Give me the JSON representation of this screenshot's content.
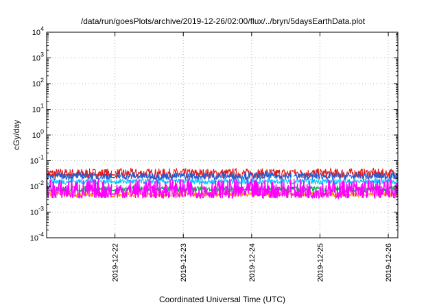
{
  "chart_data": {
    "type": "line",
    "title": "/data/run/goesPlots/archive/2019-12-26/02:00/flux/../bryn/5daysEarthData.plot",
    "xlabel": "Coordinated Universal Time (UTC)",
    "ylabel": "cGy/day",
    "yscale": "log",
    "ylim": [
      0.0001,
      10000
    ],
    "xlim": [
      0,
      5.14
    ],
    "y_ticks": [
      {
        "value": 10000,
        "base": "10",
        "exp": "4"
      },
      {
        "value": 1000,
        "base": "10",
        "exp": "3"
      },
      {
        "value": 100,
        "base": "10",
        "exp": "2"
      },
      {
        "value": 10,
        "base": "10",
        "exp": "1"
      },
      {
        "value": 1,
        "base": "10",
        "exp": "0"
      },
      {
        "value": 0.1,
        "base": "10",
        "exp": "-1"
      },
      {
        "value": 0.01,
        "base": "10",
        "exp": "-2"
      },
      {
        "value": 0.001,
        "base": "10",
        "exp": "-3"
      },
      {
        "value": 0.0001,
        "base": "10",
        "exp": "-4"
      }
    ],
    "x_ticks": [
      {
        "value": 1,
        "label": "2019-12-22"
      },
      {
        "value": 2,
        "label": "2019-12-23"
      },
      {
        "value": 3,
        "label": "2019-12-24"
      },
      {
        "value": 4,
        "label": "2019-12-25"
      },
      {
        "value": 5,
        "label": "2019-12-26"
      }
    ],
    "grid": true,
    "gaps": [
      [
        0.95,
        1.0
      ],
      [
        3.58,
        3.62
      ]
    ],
    "series": [
      {
        "color": "#e4191c",
        "segments": [
          {
            "x": [
              0,
              0.95
            ],
            "y": [
              0.028,
              0.028
            ]
          },
          {
            "x": [
              0.95,
              1.0
            ],
            "y": [
              0.028,
              0.028
            ]
          },
          {
            "x": [
              3.58,
              3.62
            ],
            "y": [
              0.04,
              0.04
            ]
          }
        ],
        "band": [
          0.02,
          0.05
        ]
      },
      {
        "color": "#ff8c00",
        "segments": [
          {
            "x": [
              0.95,
              1.0
            ],
            "y": [
              0.004,
              0.004
            ]
          },
          {
            "x": [
              3.58,
              3.62
            ],
            "y": [
              0.0045,
              0.0045
            ]
          }
        ],
        "band": [
          0.004,
          0.006
        ]
      },
      {
        "color": "#00b050",
        "segments": [
          {
            "x": [
              0.95,
              1.0
            ],
            "y": [
              0.007,
              0.007
            ]
          },
          {
            "x": [
              3.58,
              3.62
            ],
            "y": [
              0.008,
              0.008
            ]
          }
        ],
        "band": [
          0.006,
          0.01
        ]
      },
      {
        "color": "#00c8ff",
        "segments": [
          {
            "x": [
              0.95,
              1.0
            ],
            "y": [
              0.015,
              0.015
            ]
          },
          {
            "x": [
              3.58,
              3.62
            ],
            "y": [
              0.013,
              0.013
            ]
          }
        ],
        "band": [
          0.012,
          0.02
        ]
      },
      {
        "color": "#1f5fd6",
        "segments": [
          {
            "x": [
              0.95,
              1.0
            ],
            "y": [
              0.022,
              0.022
            ]
          },
          {
            "x": [
              3.58,
              3.62
            ],
            "y": [
              0.009,
              0.009
            ]
          }
        ],
        "band": [
          0.018,
          0.035
        ]
      },
      {
        "color": "#ff00ff",
        "segments": [
          {
            "x": [
              0.95,
              1.0
            ],
            "y": [
              0.005,
              0.005
            ]
          },
          {
            "x": [
              3.58,
              3.62
            ],
            "y": [
              0.005,
              0.005
            ]
          }
        ],
        "band": [
          0.0035,
          0.02
        ]
      }
    ]
  }
}
